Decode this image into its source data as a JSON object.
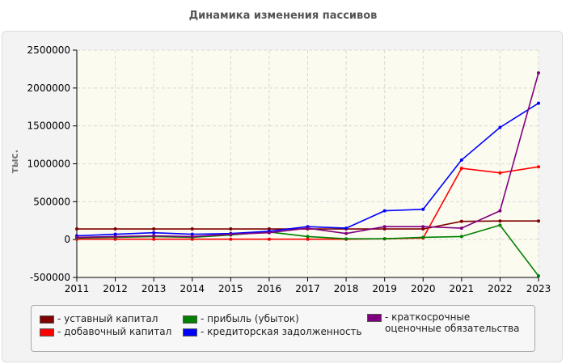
{
  "chart_data": {
    "type": "line",
    "title": "Динамика изменения пассивов",
    "ylabel": "тыс.",
    "xlabel": "",
    "ylim": [
      -500000,
      2500000
    ],
    "yticks": [
      "2500000",
      "2000000",
      "1500000",
      "1000000",
      "500000",
      "0",
      "-500000"
    ],
    "x": [
      2011,
      2012,
      2013,
      2014,
      2015,
      2016,
      2017,
      2018,
      2019,
      2020,
      2021,
      2022,
      2023
    ],
    "grid": true,
    "legend_position": "bottom",
    "series": [
      {
        "name": "- уставный капитал",
        "color": "#800000",
        "values": [
          140000,
          140000,
          140000,
          140000,
          140000,
          140000,
          140000,
          140000,
          140000,
          140000,
          240000,
          245000,
          245000
        ]
      },
      {
        "name": "- добавочный капитал",
        "color": "#ff0000",
        "values": [
          5000,
          5000,
          5000,
          5000,
          5000,
          5000,
          5000,
          5000,
          10000,
          20000,
          940000,
          880000,
          960000
        ]
      },
      {
        "name": "- прибыль (убыток)",
        "color": "#008000",
        "values": [
          20000,
          30000,
          40000,
          30000,
          60000,
          100000,
          40000,
          10000,
          10000,
          30000,
          40000,
          190000,
          -480000
        ]
      },
      {
        "name": "- кредиторская задолженность",
        "color": "#0000ff",
        "values": [
          50000,
          70000,
          90000,
          70000,
          80000,
          110000,
          170000,
          150000,
          380000,
          400000,
          1050000,
          1480000,
          1800000
        ]
      },
      {
        "name": "- краткосрочные оценочные обязательства",
        "color": "#800080",
        "values": [
          30000,
          40000,
          50000,
          40000,
          70000,
          90000,
          150000,
          80000,
          170000,
          170000,
          150000,
          380000,
          2200000
        ]
      }
    ]
  }
}
